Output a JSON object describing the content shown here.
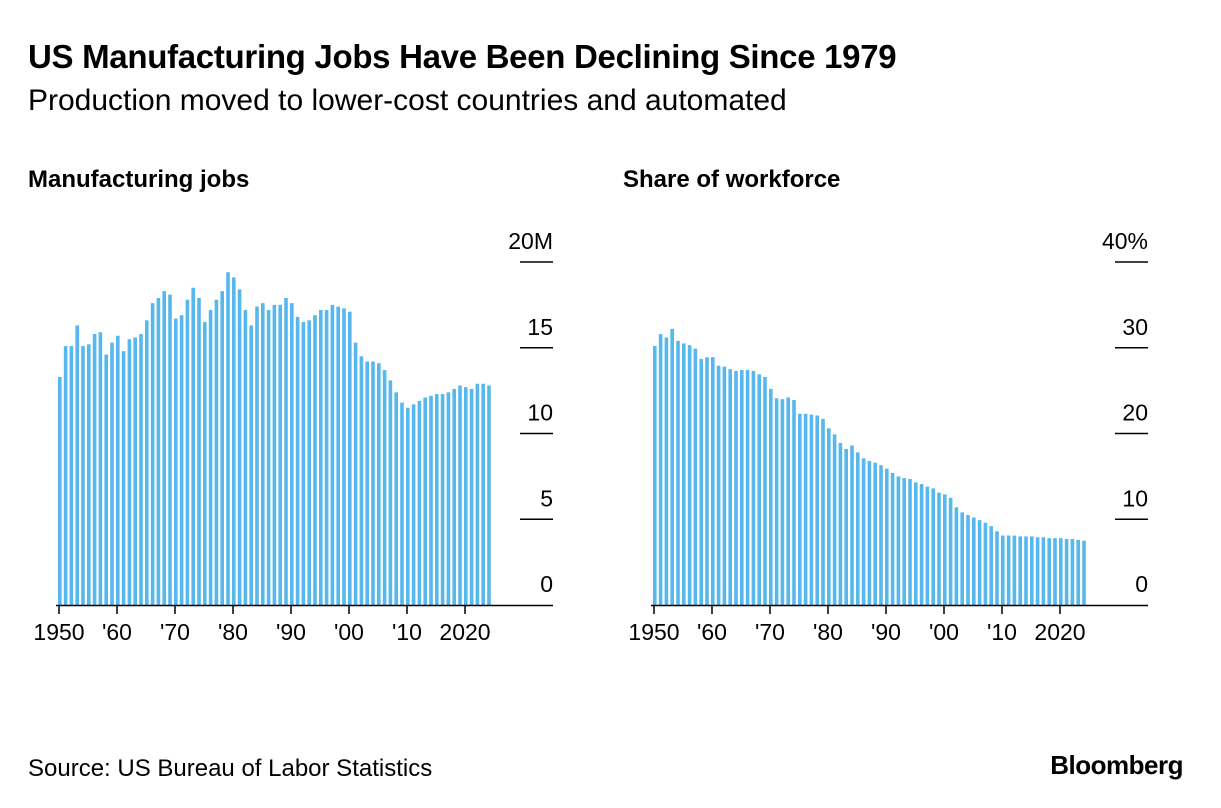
{
  "title": "US Manufacturing Jobs Have Been Declining Since 1979",
  "subtitle": "Production moved to lower-cost countries and automated",
  "source": "Source: US Bureau of Labor Statistics",
  "brand": "Bloomberg",
  "colors": {
    "bar": "#56b8ec",
    "axis": "#000000"
  },
  "chart_data": [
    {
      "type": "bar",
      "title": "Manufacturing jobs",
      "x_start_year": 1950,
      "ylim": [
        0,
        20
      ],
      "yticks": [
        {
          "value": 0,
          "label": "0"
        },
        {
          "value": 5,
          "label": "5"
        },
        {
          "value": 10,
          "label": "10"
        },
        {
          "value": 15,
          "label": "15"
        },
        {
          "value": 20,
          "label": "20M"
        }
      ],
      "xticks": [
        {
          "year": 1950,
          "label": "1950"
        },
        {
          "year": 1960,
          "label": "'60"
        },
        {
          "year": 1970,
          "label": "'70"
        },
        {
          "year": 1980,
          "label": "'80"
        },
        {
          "year": 1990,
          "label": "'90"
        },
        {
          "year": 2000,
          "label": "'00"
        },
        {
          "year": 2010,
          "label": "'10"
        },
        {
          "year": 2020,
          "label": "2020"
        }
      ],
      "values": [
        13.3,
        15.1,
        15.1,
        16.3,
        15.1,
        15.2,
        15.8,
        15.9,
        14.6,
        15.3,
        15.7,
        14.8,
        15.5,
        15.6,
        15.8,
        16.6,
        17.6,
        17.9,
        18.3,
        18.1,
        16.7,
        16.9,
        17.8,
        18.5,
        17.9,
        16.5,
        17.2,
        17.8,
        18.3,
        19.4,
        19.1,
        18.4,
        17.2,
        16.3,
        17.4,
        17.6,
        17.2,
        17.5,
        17.5,
        17.9,
        17.6,
        16.8,
        16.5,
        16.6,
        16.9,
        17.2,
        17.2,
        17.5,
        17.4,
        17.3,
        17.1,
        15.3,
        14.5,
        14.2,
        14.2,
        14.1,
        13.7,
        13.1,
        12.4,
        11.8,
        11.5,
        11.7,
        11.9,
        12.1,
        12.2,
        12.3,
        12.3,
        12.4,
        12.6,
        12.8,
        12.7,
        12.6,
        12.9,
        12.9,
        12.8
      ]
    },
    {
      "type": "bar",
      "title": "Share of workforce",
      "x_start_year": 1950,
      "ylim": [
        0,
        40
      ],
      "yticks": [
        {
          "value": 0,
          "label": "0"
        },
        {
          "value": 10,
          "label": "10"
        },
        {
          "value": 20,
          "label": "20"
        },
        {
          "value": 30,
          "label": "30"
        },
        {
          "value": 40,
          "label": "40%"
        }
      ],
      "xticks": [
        {
          "year": 1950,
          "label": "1950"
        },
        {
          "year": 1960,
          "label": "'60"
        },
        {
          "year": 1970,
          "label": "'70"
        },
        {
          "year": 1980,
          "label": "'80"
        },
        {
          "year": 1990,
          "label": "'90"
        },
        {
          "year": 2000,
          "label": "'00"
        },
        {
          "year": 2010,
          "label": "'10"
        },
        {
          "year": 2020,
          "label": "2020"
        }
      ],
      "values": [
        30.2,
        31.6,
        31.2,
        32.2,
        30.8,
        30.5,
        30.3,
        29.9,
        28.7,
        28.9,
        28.9,
        27.9,
        27.8,
        27.5,
        27.3,
        27.4,
        27.4,
        27.3,
        26.9,
        26.6,
        25.2,
        24.1,
        24.0,
        24.2,
        23.9,
        22.3,
        22.3,
        22.2,
        22.1,
        21.7,
        20.6,
        19.9,
        18.9,
        18.2,
        18.6,
        17.8,
        17.1,
        16.8,
        16.6,
        16.3,
        15.9,
        15.4,
        15.0,
        14.8,
        14.7,
        14.3,
        14.1,
        13.8,
        13.6,
        13.1,
        12.9,
        12.5,
        11.4,
        10.8,
        10.5,
        10.2,
        9.9,
        9.6,
        9.2,
        8.6,
        8.1,
        8.1,
        8.1,
        8.0,
        8.0,
        8.0,
        7.9,
        7.9,
        7.8,
        7.8,
        7.8,
        7.7,
        7.7,
        7.6,
        7.5
      ]
    }
  ]
}
